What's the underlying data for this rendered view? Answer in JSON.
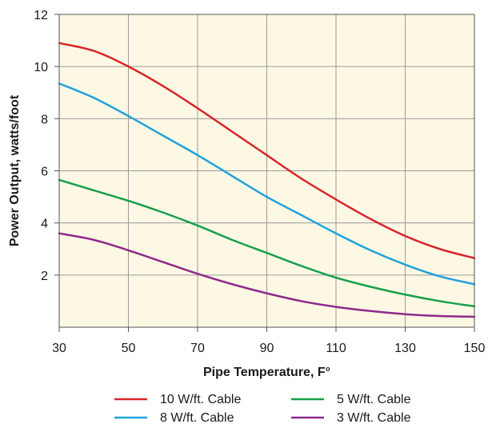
{
  "chart_data": {
    "type": "line",
    "xlabel": "Pipe Temperature, F°",
    "ylabel": "Power Output, watts/foot",
    "xlim": [
      30,
      150
    ],
    "ylim": [
      0,
      12
    ],
    "x_ticks": [
      "30",
      "50",
      "70",
      "90",
      "110",
      "130",
      "150"
    ],
    "y_ticks": [
      "2",
      "4",
      "6",
      "8",
      "10",
      "12"
    ],
    "x": [
      30,
      40,
      50,
      60,
      70,
      80,
      90,
      100,
      110,
      120,
      130,
      140,
      150
    ],
    "grid": true,
    "plot_background": "#fdf8e4",
    "legend_position": "bottom",
    "series": [
      {
        "name": "10 W/ft. Cable",
        "color": "#d7262c",
        "values": [
          10.9,
          10.6,
          10.0,
          9.25,
          8.4,
          7.5,
          6.6,
          5.7,
          4.9,
          4.15,
          3.5,
          3.0,
          2.65
        ]
      },
      {
        "name": "8 W/ft. Cable",
        "color": "#1fa3dc",
        "values": [
          9.35,
          8.8,
          8.1,
          7.35,
          6.6,
          5.8,
          5.0,
          4.3,
          3.6,
          2.95,
          2.4,
          1.95,
          1.65
        ]
      },
      {
        "name": "5 W/ft. Cable",
        "color": "#16a04a",
        "values": [
          5.65,
          5.25,
          4.85,
          4.4,
          3.9,
          3.35,
          2.85,
          2.35,
          1.9,
          1.55,
          1.25,
          1.0,
          0.8
        ]
      },
      {
        "name": "3 W/ft. Cable",
        "color": "#8e2a8c",
        "values": [
          3.6,
          3.35,
          2.95,
          2.5,
          2.05,
          1.65,
          1.3,
          1.0,
          0.78,
          0.62,
          0.5,
          0.43,
          0.4
        ]
      }
    ]
  }
}
